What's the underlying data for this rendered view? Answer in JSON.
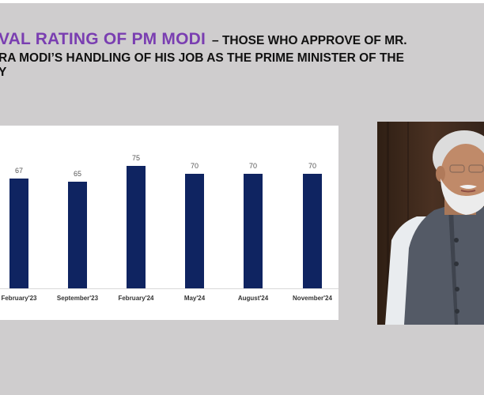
{
  "slide": {
    "background_color": "#cfcdce",
    "title": {
      "accent_text": "VAL RATING OF PM MODI",
      "line1_rest": "– THOSE WHO APPROVE OF MR.",
      "line2": "RA MODI’S HANDLING OF HIS JOB AS THE PRIME MINISTER OF THE",
      "line3": "Y",
      "accent_color": "#7a3eb1",
      "text_color": "#111111"
    },
    "photo": {
      "subject": "portrait-photo",
      "description": "Man with white hair and beard wearing grey vest over white kurta, dark brown background"
    }
  },
  "chart_data": {
    "type": "bar",
    "title": "Approval rating of PM Modi – those who approve of Mr. Narendra Modi's handling of his job as the Prime Minister of the country",
    "categories": [
      "February'23",
      "September'23",
      "February'24",
      "May'24",
      "August'24",
      "November'24"
    ],
    "values": [
      67,
      65,
      75,
      70,
      70,
      70
    ],
    "series": [
      {
        "name": "Approve",
        "values": [
          67,
          65,
          75,
          70,
          70,
          70
        ],
        "color": "#0f2461"
      }
    ],
    "xlabel": "",
    "ylabel": "",
    "ylim": [
      0,
      100
    ],
    "grid": false,
    "legend": "none",
    "data_labels": [
      "67",
      "65",
      "75",
      "70",
      "70",
      "70"
    ]
  }
}
